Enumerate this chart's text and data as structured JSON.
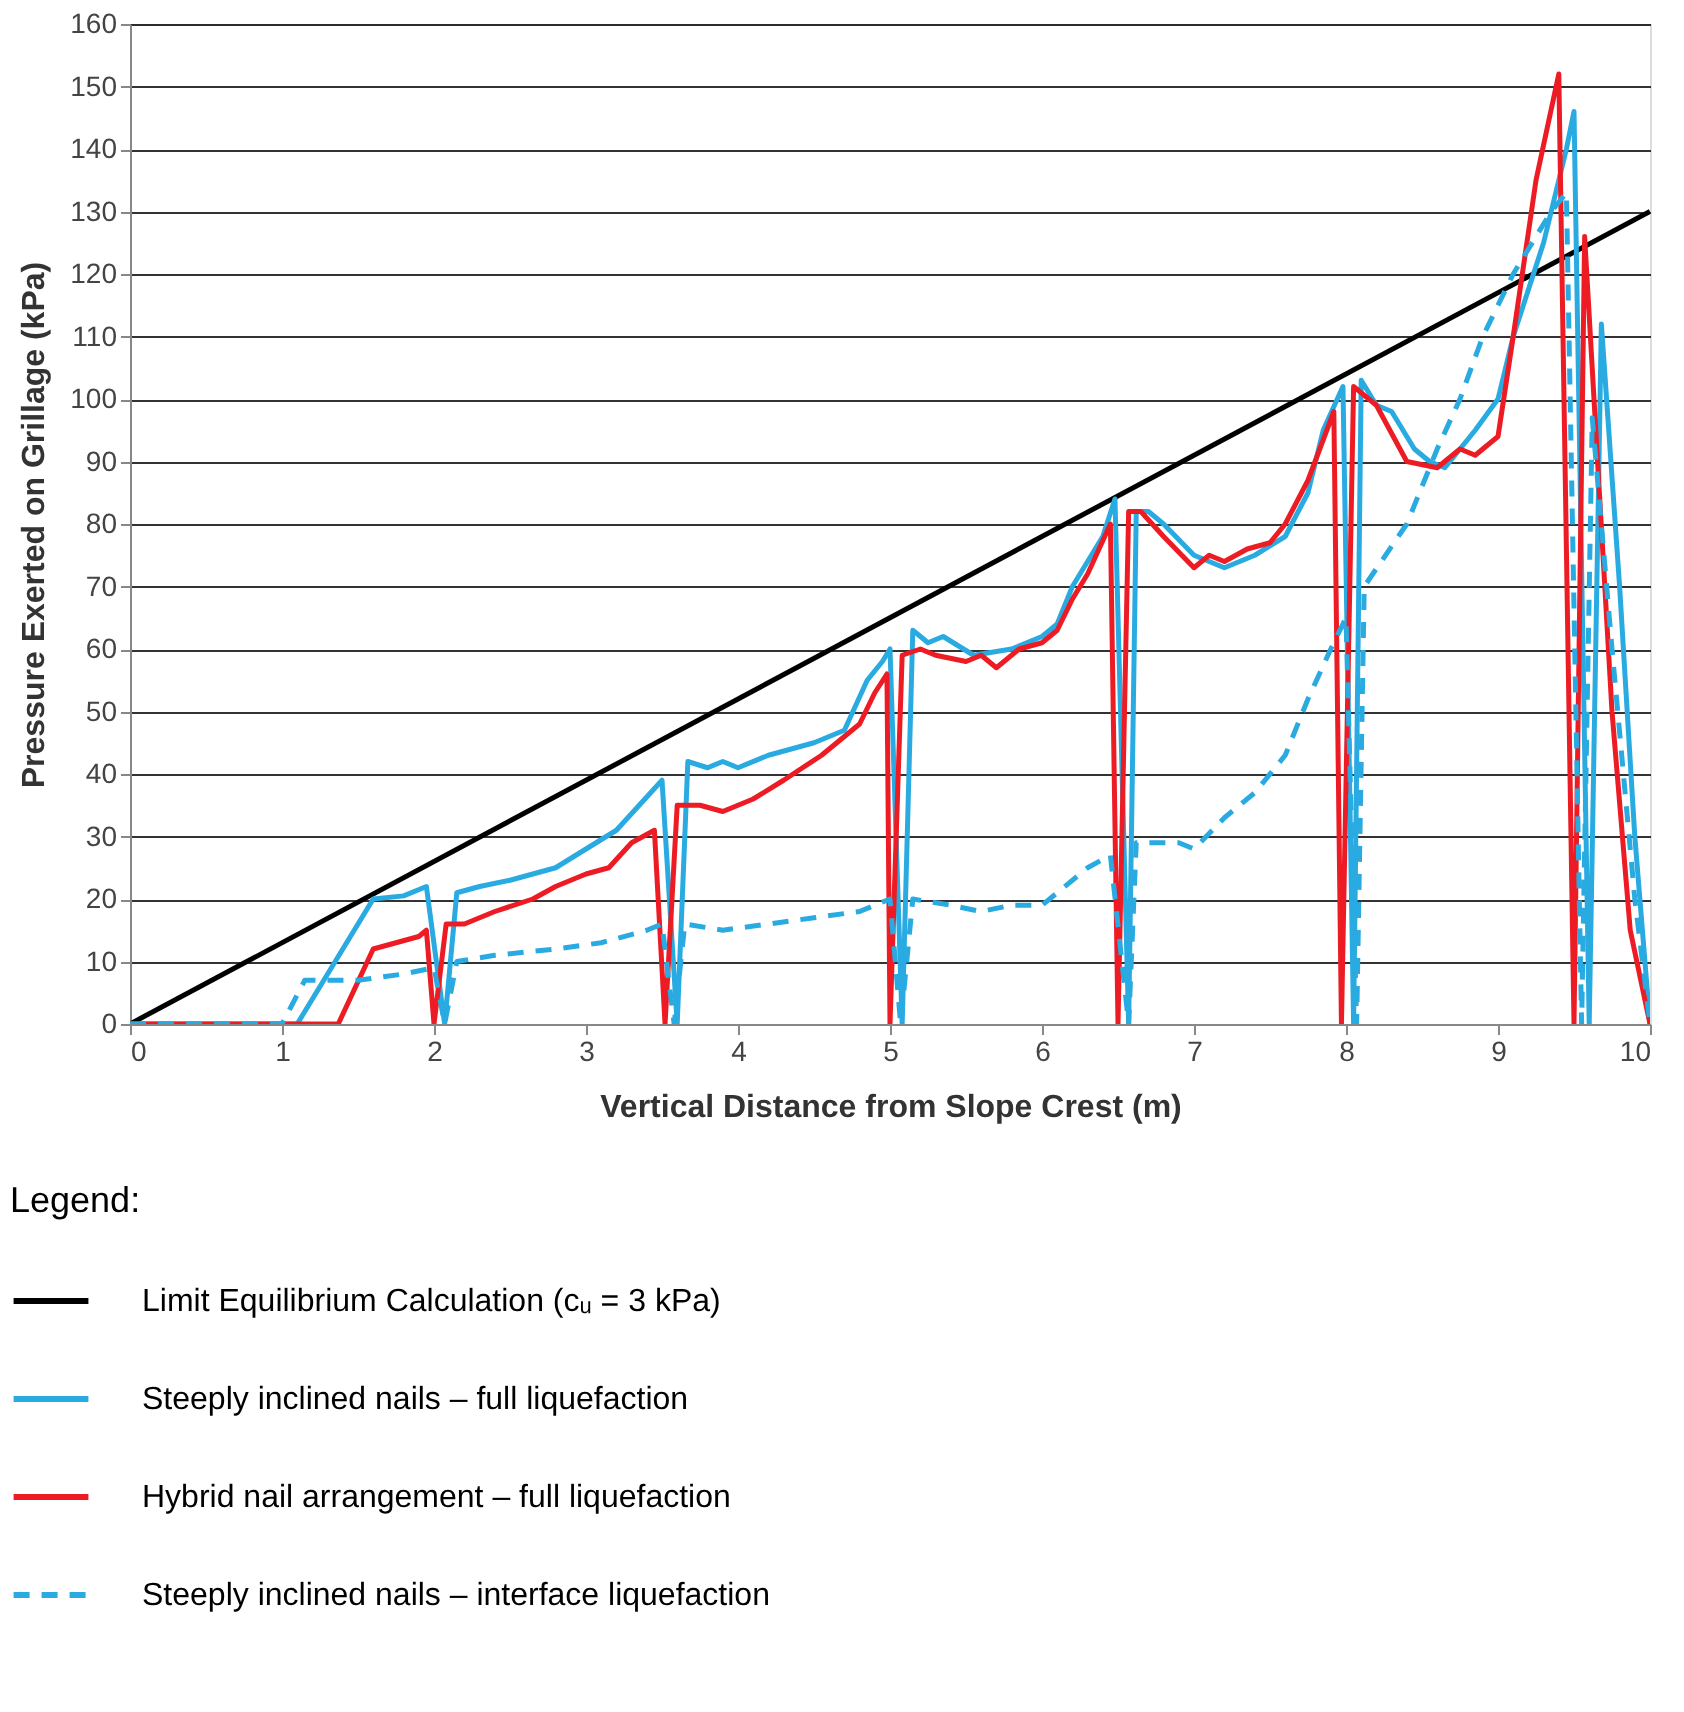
{
  "chart_data": {
    "type": "line",
    "xlabel": "Vertical Distance from Slope Crest (m)",
    "ylabel": "Pressure Exerted on Grillage (kPa)",
    "legend_title": "Legend:",
    "legend": "bottom",
    "grid": "y",
    "xlim": [
      0,
      10
    ],
    "xticks": [
      0,
      1,
      2,
      3,
      4,
      5,
      6,
      7,
      8,
      9,
      10
    ],
    "ylim": [
      0,
      160
    ],
    "yticks": [
      0,
      10,
      20,
      30,
      40,
      50,
      60,
      70,
      80,
      90,
      100,
      110,
      120,
      130,
      140,
      150,
      160
    ],
    "series": [
      {
        "name": "Limit Equilibrium Calculation (cᵤ = 3 kPa)",
        "color": "#000000",
        "line_style": "solid",
        "x": [
          0,
          10
        ],
        "values": [
          0,
          130
        ]
      },
      {
        "name": "Steeply inclined nails – full liquefaction",
        "color": "#29abe2",
        "line_style": "solid",
        "x": [
          0,
          1.1,
          1.6,
          1.8,
          1.95,
          2.07,
          2.15,
          2.3,
          2.5,
          2.8,
          3.0,
          3.2,
          3.35,
          3.5,
          3.6,
          3.67,
          3.8,
          3.9,
          4.0,
          4.2,
          4.5,
          4.7,
          4.85,
          4.95,
          5.0,
          5.08,
          5.15,
          5.25,
          5.35,
          5.55,
          5.8,
          6.0,
          6.1,
          6.2,
          6.4,
          6.48,
          6.57,
          6.62,
          6.7,
          6.8,
          7.0,
          7.2,
          7.4,
          7.6,
          7.75,
          7.85,
          7.98,
          8.05,
          8.1,
          8.2,
          8.3,
          8.45,
          8.55,
          8.65,
          8.75,
          8.85,
          9.0,
          9.1,
          9.3,
          9.45,
          9.5,
          9.6,
          9.68,
          9.8,
          9.9,
          10
        ],
        "values": [
          0,
          0,
          20,
          20.5,
          22,
          0,
          21,
          22,
          23,
          25,
          28,
          31,
          35,
          39,
          0,
          42,
          41,
          42,
          41,
          43,
          45,
          47,
          55,
          58,
          60,
          0,
          63,
          61,
          62,
          59,
          60,
          62,
          64,
          70,
          78,
          84,
          0,
          82,
          82,
          80,
          75,
          73,
          75,
          78,
          85,
          95,
          102,
          0,
          103,
          99,
          98,
          92,
          90,
          89,
          92,
          95,
          100,
          110,
          125,
          140,
          146,
          0,
          112,
          70,
          30,
          0
        ]
      },
      {
        "name": "Hybrid nail arrangement – full liquefaction",
        "color": "#ed1c24",
        "line_style": "solid",
        "x": [
          0,
          1.37,
          1.6,
          1.75,
          1.9,
          1.95,
          2.0,
          2.08,
          2.2,
          2.4,
          2.65,
          2.8,
          3.0,
          3.15,
          3.3,
          3.45,
          3.52,
          3.6,
          3.75,
          3.9,
          4.1,
          4.3,
          4.55,
          4.8,
          4.9,
          4.98,
          5.0,
          5.08,
          5.2,
          5.3,
          5.5,
          5.6,
          5.7,
          5.85,
          6.0,
          6.1,
          6.2,
          6.3,
          6.45,
          6.5,
          6.57,
          6.65,
          6.8,
          7.0,
          7.1,
          7.2,
          7.35,
          7.5,
          7.6,
          7.75,
          7.92,
          7.97,
          8.05,
          8.2,
          8.4,
          8.6,
          8.75,
          8.85,
          9.0,
          9.1,
          9.25,
          9.4,
          9.5,
          9.57,
          9.75,
          9.87,
          10
        ],
        "values": [
          0,
          0,
          12,
          13,
          14,
          15,
          0,
          16,
          16,
          18,
          20,
          22,
          24,
          25,
          29,
          31,
          0,
          35,
          35,
          34,
          36,
          39,
          43,
          48,
          53,
          56,
          0,
          59,
          60,
          59,
          58,
          59,
          57,
          60,
          61,
          63,
          68,
          72,
          80,
          0,
          82,
          82,
          78,
          73,
          75,
          74,
          76,
          77,
          80,
          87,
          98,
          0,
          102,
          99,
          90,
          89,
          92,
          91,
          94,
          110,
          135,
          152,
          0,
          126,
          50,
          15,
          0
        ]
      },
      {
        "name": "Steeply inclined nails – interface liquefaction",
        "color": "#29abe2",
        "line_style": "dashed",
        "x": [
          0,
          1.0,
          1.15,
          1.5,
          1.8,
          2.0,
          2.07,
          2.15,
          2.4,
          2.8,
          3.1,
          3.4,
          3.5,
          3.58,
          3.65,
          3.9,
          4.2,
          4.5,
          4.8,
          5.0,
          5.07,
          5.15,
          5.4,
          5.6,
          5.8,
          6.0,
          6.1,
          6.3,
          6.45,
          6.57,
          6.62,
          6.9,
          7.0,
          7.2,
          7.4,
          7.6,
          7.75,
          7.9,
          8.0,
          8.07,
          8.12,
          8.4,
          8.6,
          8.75,
          8.9,
          9.1,
          9.35,
          9.45,
          9.55,
          9.62,
          9.75,
          9.9,
          10
        ],
        "values": [
          0,
          0,
          7,
          7,
          8,
          9,
          0,
          10,
          11,
          12,
          13,
          15,
          16,
          0,
          16,
          15,
          16,
          17,
          18,
          20,
          0,
          20,
          19,
          18,
          19,
          19,
          21,
          25,
          27,
          0,
          29,
          29,
          28,
          33,
          37,
          43,
          52,
          60,
          65,
          0,
          70,
          80,
          92,
          100,
          110,
          120,
          130,
          133,
          0,
          97,
          60,
          20,
          0
        ]
      }
    ]
  }
}
